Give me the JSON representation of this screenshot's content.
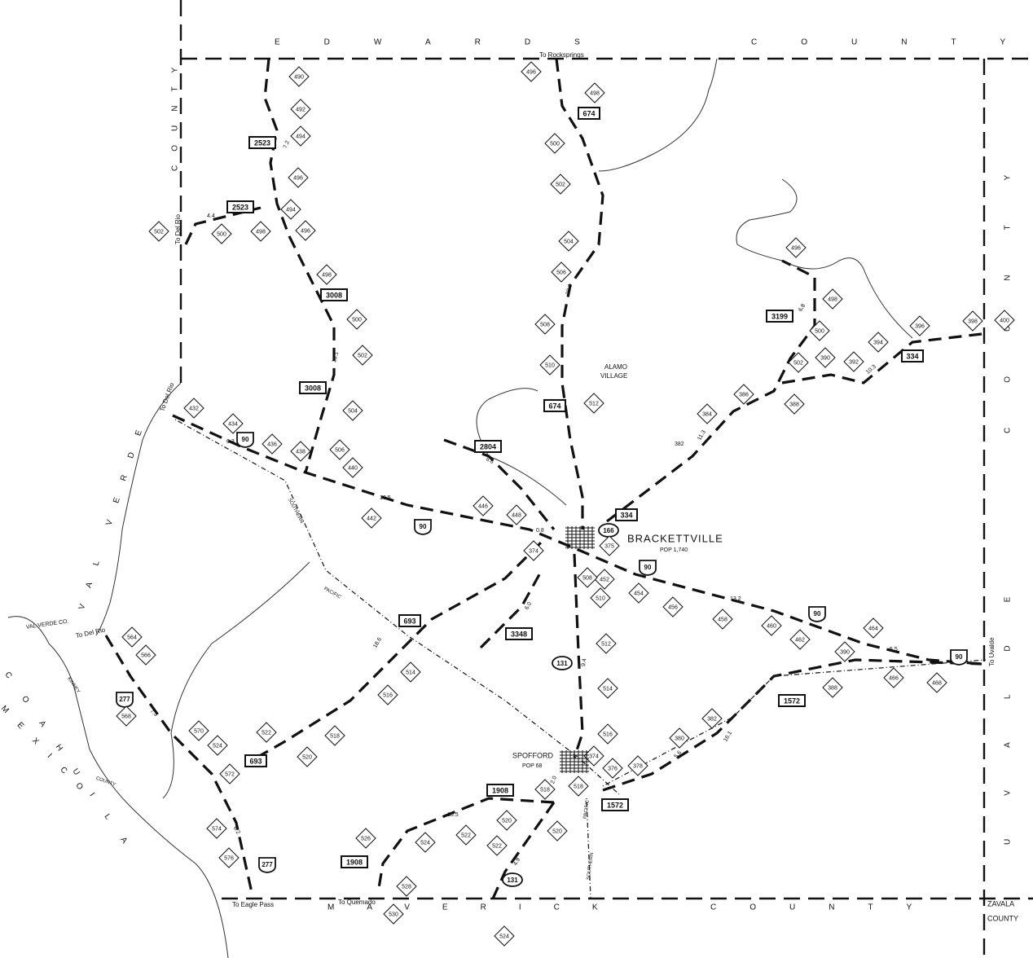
{
  "counties": [
    "EDWARDS",
    "COUNTY",
    "COUNTY",
    "UVALDE",
    "COUNTY",
    "VAL VERDE",
    "MAVERICK",
    "COUNTY",
    "COAHUILA",
    "MEXICO",
    "ZAVALA",
    "COUNTY",
    "VAL VERDE CO.",
    "KINNEY",
    "COUNTY"
  ],
  "places": [
    "BRACKETTVILLE",
    "POP 1,740",
    "SPOFFORD",
    "POP 68",
    "ALAMO",
    "VILLAGE"
  ],
  "directions": [
    "To Rocksprings",
    "To Del Rio",
    "To Del Rio",
    "To Del Rio",
    "To Eagle Pass",
    "To Quemado",
    "To Uvalde"
  ],
  "railroad": [
    "SOUTHERN",
    "PACIFIC",
    "PACIFIC",
    "SOUTHERN"
  ],
  "shields": [
    "2523",
    "2523",
    "3008",
    "3008",
    "674",
    "674",
    "2804",
    "334",
    "334",
    "3199",
    "693",
    "3348",
    "693",
    "1908",
    "1572",
    "1572",
    "1908"
  ],
  "ovals": [
    "166",
    "131",
    "131"
  ],
  "us_shields": [
    "90",
    "90",
    "90",
    "90",
    "90",
    "277",
    "277"
  ],
  "markers": [
    "490",
    "492",
    "494",
    "496",
    "494",
    "496",
    "498",
    "500",
    "502",
    "498",
    "500",
    "502",
    "504",
    "506",
    "438",
    "440",
    "436",
    "434",
    "432",
    "442",
    "446",
    "448",
    "374",
    "375",
    "452",
    "508",
    "510",
    "454",
    "456",
    "458",
    "460",
    "462",
    "464",
    "390",
    "466",
    "468",
    "388",
    "512",
    "514",
    "516",
    "514",
    "516",
    "518",
    "520",
    "522",
    "524",
    "570",
    "572",
    "574",
    "576",
    "564",
    "566",
    "568",
    "374",
    "376",
    "378",
    "380",
    "382",
    "518",
    "518",
    "520",
    "522",
    "524",
    "520",
    "522",
    "524",
    "526",
    "528",
    "530",
    "496",
    "498",
    "500",
    "502",
    "504",
    "506",
    "508",
    "510",
    "512",
    "384",
    "386",
    "388",
    "502",
    "390",
    "392",
    "394",
    "396",
    "398",
    "400",
    "496",
    "498",
    "500"
  ],
  "distances": [
    "4.4",
    "7.2",
    "13.1",
    "22.0",
    "6.3",
    "10.5",
    "6.6",
    "0.8",
    "382",
    "11.3",
    "6.8",
    "10.3",
    "13.2",
    "5.5",
    "18.6",
    "6.0",
    "9.4",
    "7.3",
    "6.2",
    "10.5",
    "2.0",
    "4.9",
    "5.6",
    "16.1"
  ]
}
